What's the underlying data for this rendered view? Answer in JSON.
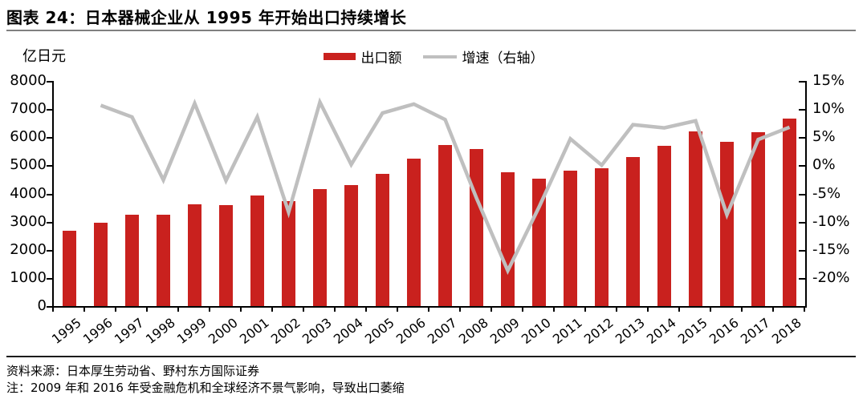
{
  "figure": {
    "title": "图表 24：日本器械企业从 1995 年开始出口持续增长",
    "source": "资料来源：日本厚生劳动省、野村东方国际证券",
    "note": "注：2009 年和 2016 年受金融危机和全球经济不景气影响，导致出口萎缩"
  },
  "legend": {
    "bar_label": "出口额",
    "line_label": "增速（右轴）"
  },
  "colors": {
    "bar": "#C9211E",
    "line": "#BFBFBF",
    "axis": "#000000",
    "title_rule": "#808080",
    "footer_rule": "#1C1C1C"
  },
  "chart_data": {
    "type": "combo-bar-line",
    "title": "图表 24：日本器械企业从 1995 年开始出口持续增长",
    "categories": [
      "1995",
      "1996",
      "1997",
      "1998",
      "1999",
      "2000",
      "2001",
      "2002",
      "2003",
      "2004",
      "2005",
      "2006",
      "2007",
      "2008",
      "2009",
      "2010",
      "2011",
      "2012",
      "2013",
      "2014",
      "2015",
      "2016",
      "2017",
      "2018"
    ],
    "series": [
      {
        "name": "出口额",
        "type": "bar",
        "axis": "left",
        "unit": "亿日元",
        "color": "#C9211E",
        "values": [
          2670,
          2970,
          3250,
          3240,
          3620,
          3600,
          3940,
          3730,
          4170,
          4290,
          4690,
          5240,
          5730,
          5570,
          4760,
          4540,
          4810,
          4900,
          5290,
          5700,
          6200,
          5830,
          6180,
          6660
        ]
      },
      {
        "name": "增速（右轴）",
        "type": "line",
        "axis": "right",
        "unit": "%",
        "color": "#BFBFBF",
        "values": [
          null,
          11.2,
          9.4,
          -0.4,
          11.5,
          -0.5,
          9.4,
          -5.4,
          11.7,
          2.0,
          10.0,
          11.4,
          9.0,
          -3.2,
          -14.5,
          -4.6,
          6.0,
          1.9,
          8.2,
          7.7,
          8.8,
          -5.8,
          5.9,
          7.8
        ]
      }
    ],
    "left_axis": {
      "label": "亿日元",
      "min": 0,
      "max": 8000,
      "tick_step": 1000,
      "ticks": [
        "8000",
        "7000",
        "6000",
        "5000",
        "4000",
        "3000",
        "2000",
        "1000",
        "0"
      ]
    },
    "right_axis": {
      "label": "增速（右轴）",
      "min": -20,
      "max": 15,
      "tick_step": 5,
      "ticks": [
        "15%",
        "10%",
        "5%",
        "0%",
        "-5%",
        "-10%",
        "-15%",
        "-20%"
      ]
    },
    "grid": false,
    "legend_position": "top-center"
  }
}
